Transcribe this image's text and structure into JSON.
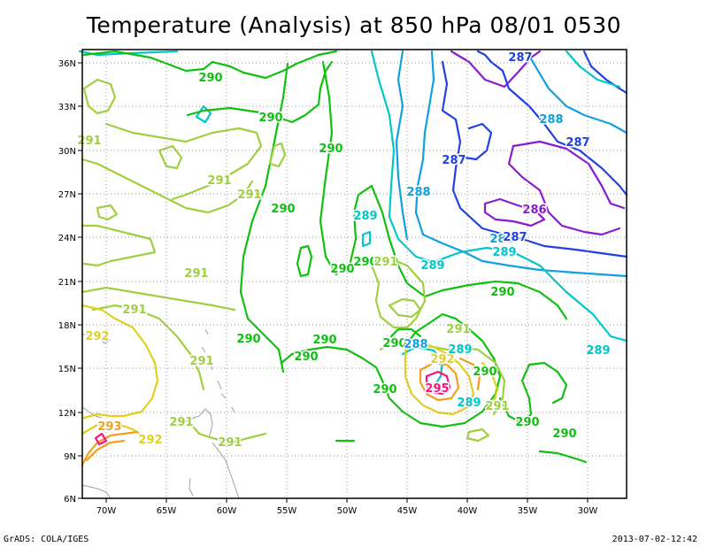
{
  "title": "Temperature (Analysis) at 850 hPa 08/01 0530",
  "footer": {
    "left": "GrADS: COLA/IGES",
    "right": "2013-07-02-12:42"
  },
  "lat_ticks": [
    "6N",
    "9N",
    "12N",
    "15N",
    "18N",
    "21N",
    "24N",
    "27N",
    "30N",
    "33N",
    "36N"
  ],
  "lon_ticks": [
    "70W",
    "65W",
    "60W",
    "55W",
    "50W",
    "45W",
    "40W",
    "35W",
    "30W"
  ],
  "colors": {
    "c286": "#8a1ad0",
    "c287": "#2040e0",
    "c288": "#10a0e0",
    "c289": "#00c8c8",
    "c290": "#10c010",
    "c291": "#a0d040",
    "c292": "#e0d020",
    "c293": "#f0a020",
    "c295": "#ff1080",
    "coast": "#a0a0a0",
    "grid": "#999999"
  },
  "contour_labels": [
    {
      "text": "290",
      "color": "c290"
    },
    {
      "text": "290",
      "color": "c290"
    },
    {
      "text": "290",
      "color": "c290"
    },
    {
      "text": "290",
      "color": "c290"
    },
    {
      "text": "290",
      "color": "c290"
    },
    {
      "text": "290",
      "color": "c290"
    },
    {
      "text": "290",
      "color": "c290"
    },
    {
      "text": "290",
      "color": "c290"
    },
    {
      "text": "290",
      "color": "c290"
    },
    {
      "text": "290",
      "color": "c290"
    },
    {
      "text": "290",
      "color": "c290"
    },
    {
      "text": "290",
      "color": "c290"
    },
    {
      "text": "290",
      "color": "c290"
    },
    {
      "text": "290",
      "color": "c290"
    },
    {
      "text": "290",
      "color": "c290"
    },
    {
      "text": "291",
      "color": "c291"
    },
    {
      "text": "291",
      "color": "c291"
    },
    {
      "text": "291",
      "color": "c291"
    },
    {
      "text": "291",
      "color": "c291"
    },
    {
      "text": "291",
      "color": "c291"
    },
    {
      "text": "291",
      "color": "c291"
    },
    {
      "text": "291",
      "color": "c291"
    },
    {
      "text": "291",
      "color": "c291"
    },
    {
      "text": "291",
      "color": "c291"
    },
    {
      "text": "291",
      "color": "c291"
    },
    {
      "text": "291",
      "color": "c291"
    },
    {
      "text": "292",
      "color": "c292"
    },
    {
      "text": "292",
      "color": "c292"
    },
    {
      "text": "292",
      "color": "c292"
    },
    {
      "text": "293",
      "color": "c293"
    },
    {
      "text": "295",
      "color": "c295"
    },
    {
      "text": "289",
      "color": "c289"
    },
    {
      "text": "289",
      "color": "c289"
    },
    {
      "text": "289",
      "color": "c289"
    },
    {
      "text": "289",
      "color": "c289"
    },
    {
      "text": "289",
      "color": "c289"
    },
    {
      "text": "289",
      "color": "c289"
    },
    {
      "text": "288",
      "color": "c288"
    },
    {
      "text": "288",
      "color": "c288"
    },
    {
      "text": "288",
      "color": "c288"
    },
    {
      "text": "288",
      "color": "c288"
    },
    {
      "text": "287",
      "color": "c287"
    },
    {
      "text": "287",
      "color": "c287"
    },
    {
      "text": "287",
      "color": "c287"
    },
    {
      "text": "287",
      "color": "c287"
    },
    {
      "text": "286",
      "color": "c286"
    }
  ]
}
